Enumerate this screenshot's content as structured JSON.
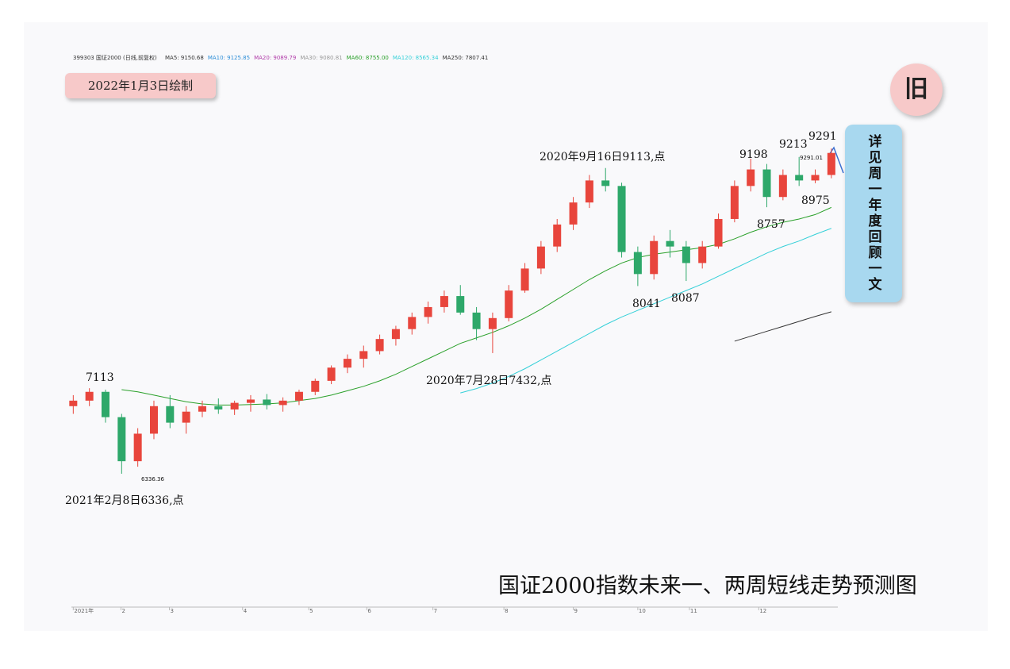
{
  "chart_data": {
    "type": "candlestick",
    "header": "399303 国证2000 (日线,前复权)",
    "legend": [
      {
        "text": "MA5: 9150.68",
        "color": "#333333"
      },
      {
        "text": "MA10: 9125.85",
        "color": "#2f8fd8"
      },
      {
        "text": "MA20: 9089.79",
        "color": "#b03aa8"
      },
      {
        "text": "MA30: 9080.81",
        "color": "#999999"
      },
      {
        "text": "MA60: 8755.00",
        "color": "#2aa02a"
      },
      {
        "text": "MA120: 8565.34",
        "color": "#35d0d8"
      },
      {
        "text": "MA250: 7807.41",
        "color": "#333333"
      }
    ],
    "drawn_date": "2022年1月3日绘制",
    "badge": "旧",
    "side_note": "详见周一年度回顾一文",
    "title": "国证2000指数未来一、两周短线走势预测图",
    "annotations": [
      "7113",
      "2021年2月8日6336,点",
      "6336.36",
      "2020年7月28日7432,点",
      "2020年9月16日9113,点",
      "8041",
      "8087",
      "9198",
      "8757",
      "9213",
      "8975",
      "9291",
      "9291.01"
    ],
    "x": [
      0,
      1,
      2,
      3,
      4,
      5,
      6,
      7,
      8,
      9,
      10,
      11,
      12,
      13,
      14,
      15,
      16,
      17,
      18,
      19,
      20,
      21,
      22,
      23,
      24,
      25,
      26,
      27,
      28,
      29,
      30,
      31,
      32,
      33,
      34,
      35,
      36,
      37,
      38,
      39,
      40,
      41,
      42,
      43,
      44,
      45,
      46,
      47
    ],
    "open": [
      6950,
      7000,
      7080,
      6850,
      6450,
      6700,
      6950,
      6800,
      6900,
      6950,
      6920,
      6980,
      7010,
      6960,
      7000,
      7080,
      7180,
      7300,
      7380,
      7450,
      7560,
      7650,
      7760,
      7850,
      7950,
      7800,
      7650,
      7750,
      8000,
      8200,
      8400,
      8600,
      8800,
      9000,
      8950,
      8350,
      8150,
      8450,
      8400,
      8250,
      8400,
      8650,
      8950,
      9100,
      8850,
      9050,
      9000,
      9050
    ],
    "high": [
      7050,
      7113,
      7100,
      6880,
      6750,
      7000,
      7050,
      6950,
      7000,
      7020,
      7000,
      7050,
      7060,
      7030,
      7100,
      7200,
      7320,
      7420,
      7500,
      7600,
      7680,
      7800,
      7900,
      8000,
      8050,
      7850,
      7800,
      8050,
      8250,
      8450,
      8650,
      8850,
      9050,
      9113,
      8980,
      8400,
      8500,
      8550,
      8450,
      8450,
      8700,
      9000,
      9198,
      9150,
      9100,
      9213,
      9100,
      9291
    ],
    "low": [
      6880,
      6950,
      6800,
      6336,
      6400,
      6650,
      6750,
      6700,
      6850,
      6880,
      6870,
      6900,
      6920,
      6900,
      6960,
      7050,
      7150,
      7250,
      7300,
      7420,
      7500,
      7600,
      7700,
      7800,
      7780,
      7550,
      7432,
      7720,
      7980,
      8150,
      8350,
      8550,
      8750,
      8900,
      8300,
      8041,
      8100,
      8300,
      8087,
      8200,
      8380,
      8620,
      8900,
      8757,
      8820,
      8950,
      8975,
      9020
    ],
    "close": [
      7000,
      7080,
      6850,
      6450,
      6700,
      6950,
      6800,
      6900,
      6950,
      6920,
      6980,
      7010,
      6960,
      7000,
      7080,
      7180,
      7300,
      7380,
      7450,
      7560,
      7650,
      7760,
      7850,
      7950,
      7800,
      7650,
      7750,
      8000,
      8200,
      8400,
      8600,
      8800,
      9000,
      8950,
      8350,
      8150,
      8450,
      8400,
      8250,
      8400,
      8650,
      8950,
      9100,
      8850,
      9050,
      9000,
      9050,
      9250
    ],
    "up_color": "#e8453c",
    "down_color": "#2ea86a",
    "series": [
      {
        "name": "MA60",
        "color": "#2aa02a",
        "values": [
          null,
          null,
          null,
          7100,
          7080,
          7050,
          7020,
          6990,
          6970,
          6960,
          6960,
          6965,
          6970,
          6980,
          7000,
          7020,
          7050,
          7090,
          7130,
          7180,
          7240,
          7310,
          7380,
          7450,
          7520,
          7570,
          7620,
          7680,
          7750,
          7830,
          7920,
          8010,
          8100,
          8180,
          8250,
          8300,
          8330,
          8350,
          8370,
          8390,
          8420,
          8470,
          8530,
          8580,
          8620,
          8650,
          8690,
          8755
        ]
      },
      {
        "name": "MA120",
        "color": "#35d0d8",
        "values": [
          null,
          null,
          null,
          null,
          null,
          null,
          null,
          null,
          null,
          null,
          null,
          null,
          null,
          null,
          null,
          null,
          null,
          null,
          null,
          null,
          null,
          null,
          null,
          null,
          7070,
          7110,
          7160,
          7220,
          7290,
          7370,
          7450,
          7530,
          7610,
          7690,
          7760,
          7820,
          7880,
          7940,
          8000,
          8060,
          8130,
          8200,
          8270,
          8340,
          8400,
          8450,
          8510,
          8565
        ]
      },
      {
        "name": "MA250",
        "color": "#333333",
        "values": [
          null,
          null,
          null,
          null,
          null,
          null,
          null,
          null,
          null,
          null,
          null,
          null,
          null,
          null,
          null,
          null,
          null,
          null,
          null,
          null,
          null,
          null,
          null,
          null,
          null,
          null,
          null,
          null,
          null,
          null,
          null,
          null,
          null,
          null,
          null,
          null,
          null,
          null,
          null,
          null,
          null,
          7540,
          7585,
          7630,
          7675,
          7720,
          7765,
          7807
        ]
      }
    ],
    "xlim": [
      -1,
      47.5
    ],
    "ylim": [
      6242,
      9558
    ],
    "xticks": [
      {
        "value": 0,
        "label": "2021年"
      },
      {
        "value": 2.96,
        "label": "2"
      },
      {
        "value": 5.96,
        "label": "3"
      },
      {
        "value": 10.5,
        "label": "4"
      },
      {
        "value": 14.6,
        "label": "5"
      },
      {
        "value": 18.2,
        "label": "6"
      },
      {
        "value": 22.3,
        "label": "7"
      },
      {
        "value": 26.7,
        "label": "8"
      },
      {
        "value": 31,
        "label": "9"
      },
      {
        "value": 35,
        "label": "10"
      },
      {
        "value": 38.2,
        "label": "11"
      },
      {
        "value": 42.5,
        "label": "12"
      }
    ]
  }
}
